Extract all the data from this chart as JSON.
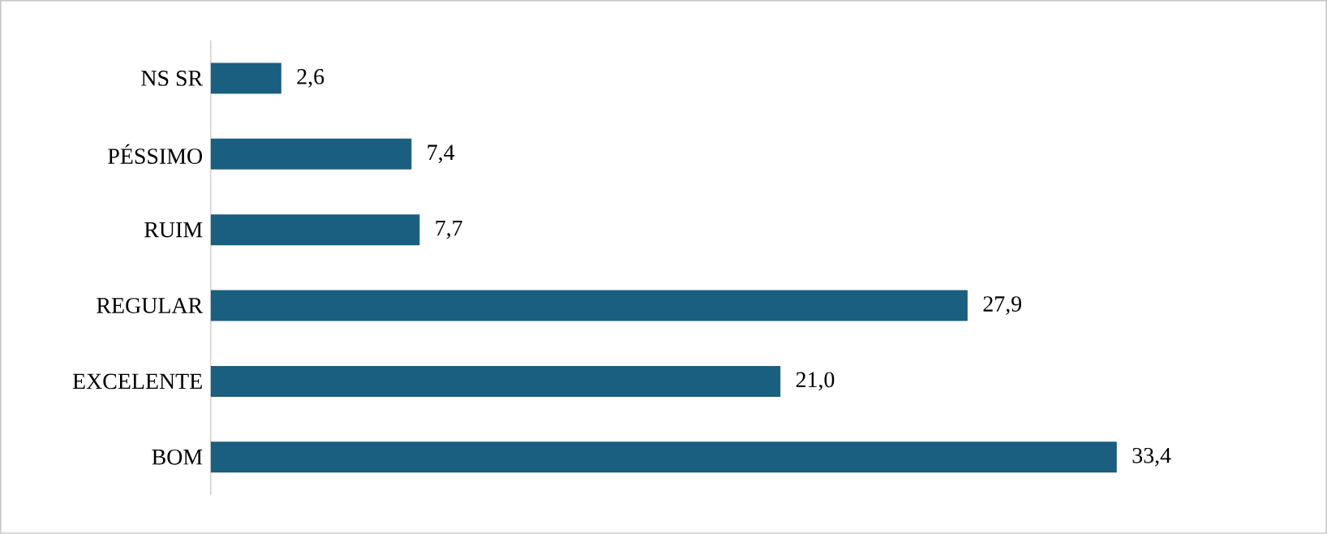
{
  "chart_data": {
    "type": "bar",
    "orientation": "horizontal",
    "categories": [
      "NS SR",
      "PÉSSIMO",
      "RUIM",
      "REGULAR",
      "EXCELENTE",
      "BOM"
    ],
    "values": [
      2.6,
      7.4,
      7.7,
      27.9,
      21.0,
      33.4
    ],
    "value_labels": [
      "2,6",
      "7,4",
      "7,7",
      "27,9",
      "21,0",
      "33,4"
    ],
    "color": "#1a5e80"
  }
}
